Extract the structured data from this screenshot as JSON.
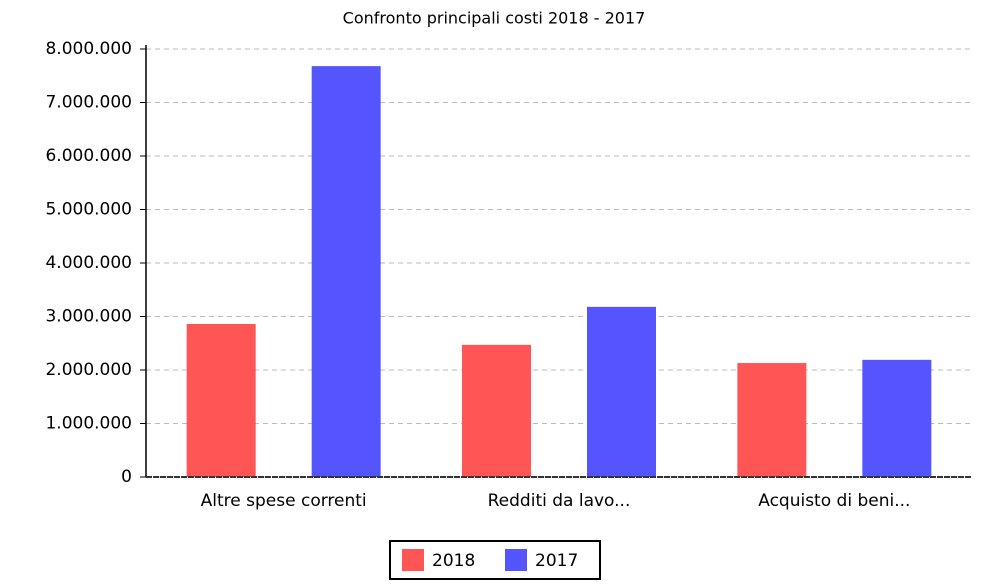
{
  "chart_data": {
    "type": "bar",
    "title": "Confronto principali costi 2018 - 2017",
    "categories": [
      "Altre spese correnti",
      "Redditi da lavo...",
      "Acquisto di beni..."
    ],
    "series": [
      {
        "name": "2018",
        "color": "#ff5555",
        "values": [
          2860000,
          2470000,
          2130000
        ]
      },
      {
        "name": "2017",
        "color": "#5555ff",
        "values": [
          7680000,
          3180000,
          2190000
        ]
      }
    ],
    "ylim": [
      0,
      8000000
    ],
    "yticks": [
      0,
      {
        "value": 1000000,
        "label": "1.000.000"
      },
      {
        "value": 2000000,
        "label": "2.000.000"
      },
      {
        "value": 3000000,
        "label": "3.000.000"
      },
      {
        "value": 4000000,
        "label": "4.000.000"
      },
      {
        "value": 5000000,
        "label": "5.000.000"
      },
      {
        "value": 6000000,
        "label": "6.000.000"
      },
      {
        "value": 7000000,
        "label": "7.000.000"
      },
      {
        "value": 8000000,
        "label": "8.000.000"
      }
    ],
    "grid": true,
    "legend": "bottom"
  }
}
